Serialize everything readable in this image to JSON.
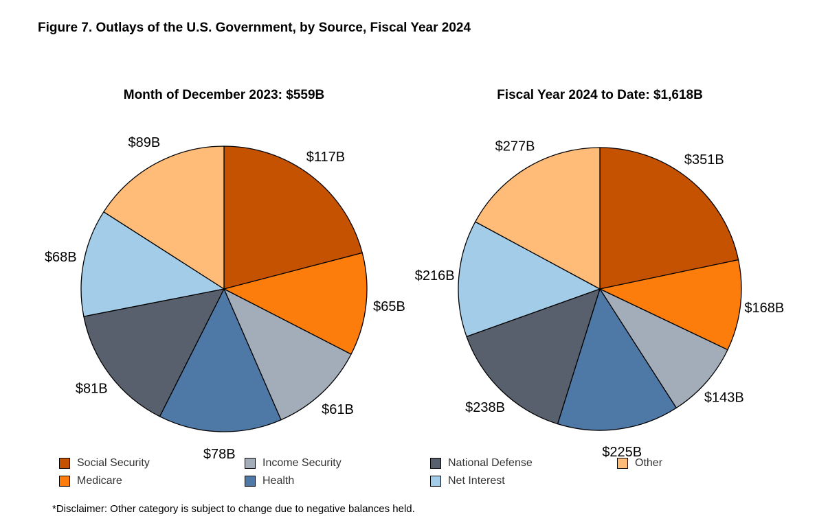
{
  "figure_title": "Figure 7. Outlays of the U.S. Government, by Source, Fiscal Year 2024",
  "disclaimer": "*Disclaimer: Other category is subject to change due to negative balances held.",
  "colors": {
    "Social Security": "#c55200",
    "Medicare": "#fc7d0b",
    "Income Security": "#a3acb9",
    "Health": "#4e79a7",
    "National Defense": "#57606c",
    "Net Interest": "#a3cce9",
    "Other": "#ffbc79"
  },
  "legend": [
    {
      "label": "Social Security"
    },
    {
      "label": "Medicare"
    },
    {
      "label": "Income Security"
    },
    {
      "label": "Health"
    },
    {
      "label": "National Defense"
    },
    {
      "label": "Net Interest"
    },
    {
      "label": "Other"
    }
  ],
  "chart_data": [
    {
      "type": "pie",
      "title": "Month of December 2023: $559B",
      "slices": [
        {
          "category": "Social Security",
          "value": 117,
          "label": "$117B"
        },
        {
          "category": "Medicare",
          "value": 65,
          "label": "$65B"
        },
        {
          "category": "Income Security",
          "value": 61,
          "label": "$61B"
        },
        {
          "category": "Health",
          "value": 78,
          "label": "$78B"
        },
        {
          "category": "National Defense",
          "value": 81,
          "label": "$81B"
        },
        {
          "category": "Net Interest",
          "value": 68,
          "label": "$68B"
        },
        {
          "category": "Other",
          "value": 89,
          "label": "$89B"
        }
      ]
    },
    {
      "type": "pie",
      "title": "Fiscal Year 2024 to Date: $1,618B",
      "slices": [
        {
          "category": "Social Security",
          "value": 351,
          "label": "$351B"
        },
        {
          "category": "Medicare",
          "value": 168,
          "label": "$168B"
        },
        {
          "category": "Income Security",
          "value": 143,
          "label": "$143B"
        },
        {
          "category": "Health",
          "value": 225,
          "label": "$225B"
        },
        {
          "category": "National Defense",
          "value": 238,
          "label": "$238B"
        },
        {
          "category": "Net Interest",
          "value": 216,
          "label": "$216B"
        },
        {
          "category": "Other",
          "value": 277,
          "label": "$277B"
        }
      ]
    }
  ]
}
